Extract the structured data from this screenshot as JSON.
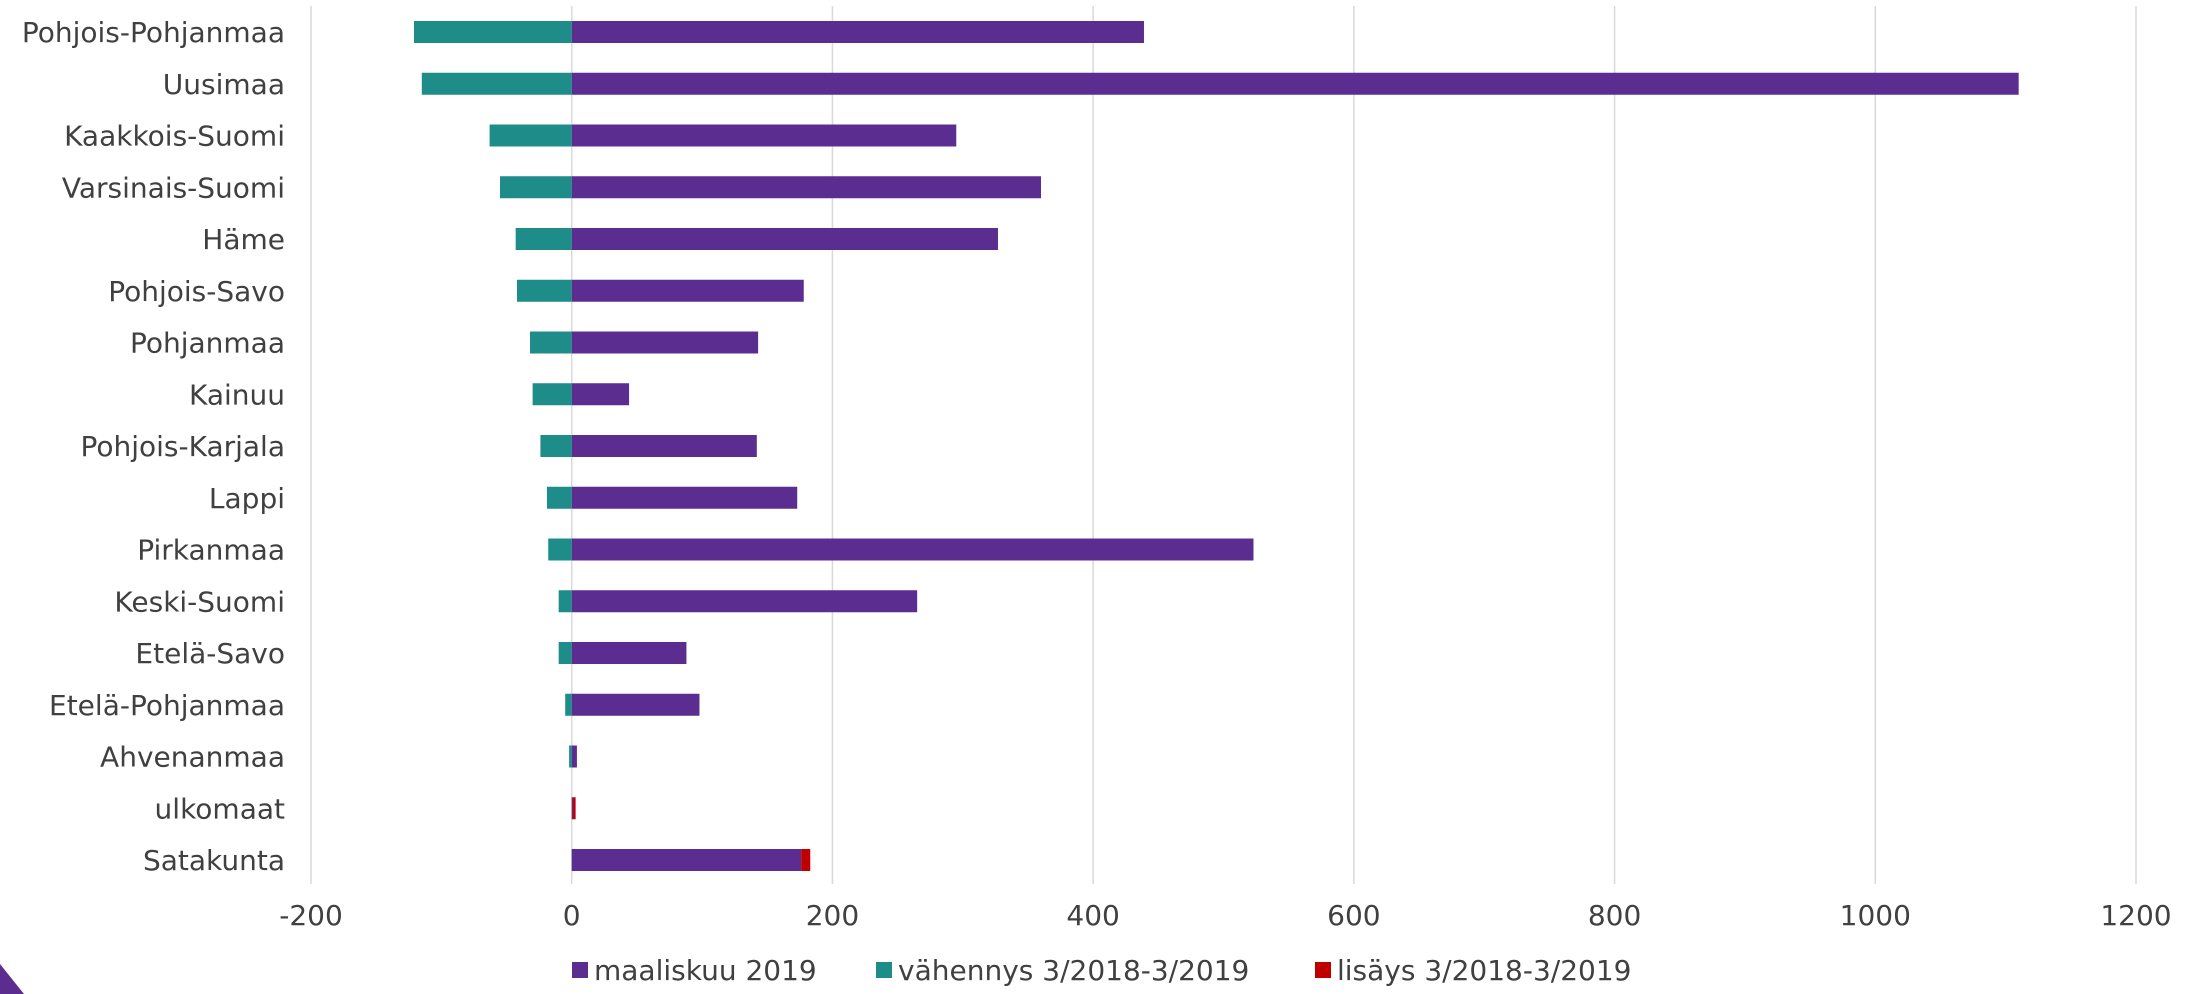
{
  "chart_data": {
    "type": "bar",
    "orientation": "horizontal",
    "stacked": true,
    "categories": [
      "Pohjois-Pohjanmaa",
      "Uusimaa",
      "Kaakkois-Suomi",
      "Varsinais-Suomi",
      "Häme",
      "Pohjois-Savo",
      "Pohjanmaa",
      "Kainuu",
      "Pohjois-Karjala",
      "Lappi",
      "Pirkanmaa",
      "Keski-Suomi",
      "Etelä-Savo",
      "Etelä-Pohjanmaa",
      "Ahvenanmaa",
      "ulkomaat",
      "Satakunta"
    ],
    "series": [
      {
        "name": "maaliskuu 2019",
        "color": "#5b2d91",
        "values": [
          439,
          1110,
          295,
          360,
          327,
          178,
          143,
          44,
          142,
          173,
          523,
          265,
          88,
          98,
          4,
          1,
          176
        ]
      },
      {
        "name": "vähennys 3/2018-3/2019",
        "color": "#1e8c88",
        "values": [
          -121,
          -115,
          -63,
          -55,
          -43,
          -42,
          -32,
          -30,
          -24,
          -19,
          -18,
          -10,
          -10,
          -5,
          -2,
          0,
          0
        ]
      },
      {
        "name": "lisäys 3/2018-3/2019",
        "color": "#c00000",
        "values": [
          0,
          0,
          0,
          0,
          0,
          0,
          0,
          0,
          0,
          0,
          0,
          0,
          0,
          0,
          0,
          2,
          7
        ]
      }
    ],
    "title": "",
    "xlabel": "",
    "ylabel": "",
    "xlim": [
      -200,
      1200
    ],
    "xticks": [
      -200,
      0,
      200,
      400,
      600,
      800,
      1000,
      1200
    ],
    "tick_labels": [
      "-200",
      "0",
      "200",
      "400",
      "600",
      "800",
      "1000",
      "1200"
    ],
    "grid": true,
    "gridline_color": "#d9d9d9",
    "legend_position": "bottom"
  },
  "corner_accent_color": "#5b2d91"
}
